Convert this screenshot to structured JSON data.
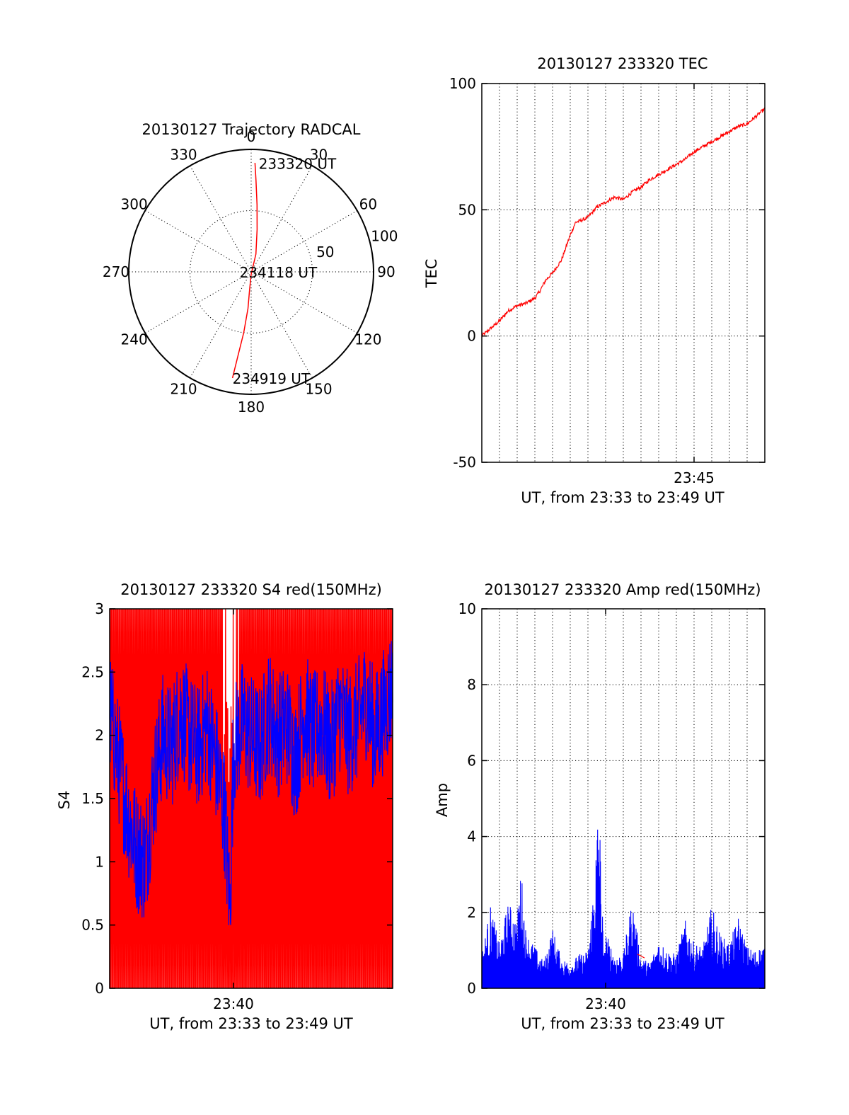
{
  "colors": {
    "red": "#ff0000",
    "blue": "#0000ff",
    "axis": "#000000",
    "background": "#ffffff"
  },
  "chart_data": [
    {
      "id": "trajectory",
      "type": "polar",
      "title": "20130127 Trajectory RADCAL",
      "angle_labels": [
        "0",
        "30",
        "60",
        "90",
        "120",
        "150",
        "180",
        "210",
        "240",
        "270",
        "300",
        "330"
      ],
      "angle_values": [
        0,
        30,
        60,
        90,
        120,
        150,
        180,
        210,
        240,
        270,
        300,
        330
      ],
      "radial_labels": [
        "50",
        "100"
      ],
      "radial_values": [
        50,
        100
      ],
      "rlim": [
        0,
        100
      ],
      "grid": true,
      "series": [
        {
          "color": "#ff0000",
          "points": [
            {
              "az": 2,
              "zen": 89
            },
            {
              "az": 3,
              "zen": 75
            },
            {
              "az": 5,
              "zen": 55
            },
            {
              "az": 8,
              "zen": 35
            },
            {
              "az": 15,
              "zen": 15
            },
            {
              "az": 180,
              "zen": 2
            },
            {
              "az": 185,
              "zen": 15
            },
            {
              "az": 185,
              "zen": 30
            },
            {
              "az": 187,
              "zen": 50
            },
            {
              "az": 189,
              "zen": 70
            },
            {
              "az": 190,
              "zen": 88
            }
          ]
        }
      ],
      "annotations": [
        {
          "text": "233320 UT",
          "az": 4,
          "zen": 89
        },
        {
          "text": "234118 UT",
          "az": 90,
          "zen": 5
        },
        {
          "text": "234919 UT",
          "az": 190,
          "zen": 88
        }
      ]
    },
    {
      "id": "tec",
      "type": "line",
      "title": "20130127 233320 TEC",
      "ylabel": "TEC",
      "xlabel": "UT, from 23:33 to 23:49 UT",
      "xlim": [
        0,
        16
      ],
      "ylim": [
        -50,
        100
      ],
      "yticks": [
        -50,
        0,
        50,
        100
      ],
      "ytick_labels": [
        "-50",
        "0",
        "50",
        "100"
      ],
      "xtick_labels": [
        {
          "text": "23:45",
          "x": 12
        }
      ],
      "xgrid": [
        1,
        2,
        3,
        4,
        5,
        6,
        7,
        8,
        9,
        10,
        11,
        12,
        13,
        14,
        15
      ],
      "grid": true,
      "series": [
        {
          "color": "#ff0000",
          "x": [
            0,
            0.5,
            1,
            1.5,
            2,
            2.5,
            3,
            3.3,
            3.6,
            4,
            4.5,
            5,
            5.3,
            5.7,
            6,
            6.5,
            7,
            7.5,
            8,
            8.5,
            9,
            9.5,
            10,
            10.5,
            11,
            11.5,
            12,
            12.5,
            13,
            13.5,
            14,
            14.5,
            15,
            15.5,
            16
          ],
          "y": [
            0,
            3,
            6,
            10,
            12,
            13,
            15,
            18,
            22,
            25,
            30,
            40,
            45,
            46,
            47,
            51,
            53,
            55,
            54,
            57,
            59,
            62,
            64,
            66,
            68,
            70,
            73,
            75,
            77,
            79,
            81,
            83,
            84,
            87,
            90
          ]
        }
      ]
    },
    {
      "id": "s4",
      "type": "line",
      "title": "20130127 233320 S4 red(150MHz)",
      "ylabel": "S4",
      "xlabel": "UT, from 23:33 to 23:49 UT",
      "xlim": [
        0,
        16
      ],
      "ylim": [
        0,
        3
      ],
      "yticks": [
        0,
        0.5,
        1,
        1.5,
        2,
        2.5,
        3
      ],
      "ytick_labels": [
        "0",
        "0.5",
        "1",
        "1.5",
        "2",
        "2.5",
        "3"
      ],
      "xtick_labels": [
        {
          "text": "23:40",
          "x": 7
        }
      ],
      "grid": false,
      "series": [
        {
          "color": "#ff0000",
          "x": [
            0,
            16
          ],
          "y": [
            0,
            3
          ]
        },
        {
          "color": "#0000ff",
          "x": [
            0,
            0.5,
            1,
            1.5,
            2,
            2.5,
            3,
            3.5,
            4,
            4.5,
            5,
            5.5,
            6,
            6.5,
            6.8,
            7,
            7.5,
            8,
            8.5,
            9,
            9.5,
            10,
            10.5,
            11,
            11.5,
            12,
            12.5,
            13,
            13.5,
            14,
            14.5,
            15,
            15.5,
            16
          ],
          "y": [
            2.2,
            1.8,
            1.4,
            1.1,
            1.0,
            1.6,
            2.0,
            1.9,
            2.2,
            2.0,
            1.9,
            2.1,
            1.8,
            1.4,
            0.6,
            1.9,
            2.1,
            2.0,
            1.9,
            2.2,
            2.0,
            2.1,
            1.8,
            2.2,
            2.0,
            2.1,
            1.9,
            2.2,
            2.0,
            2.1,
            2.3,
            2.0,
            2.2,
            2.4
          ]
        }
      ]
    },
    {
      "id": "amp",
      "type": "line",
      "title": "20130127 233320 Amp red(150MHz)",
      "ylabel": "Amp",
      "xlabel": "UT, from 23:33 to 23:49 UT",
      "xlim": [
        0,
        16
      ],
      "ylim": [
        0,
        10
      ],
      "yticks": [
        0,
        2,
        4,
        6,
        8,
        10
      ],
      "ytick_labels": [
        "0",
        "2",
        "4",
        "6",
        "8",
        "10"
      ],
      "xtick_labels": [
        {
          "text": "23:40",
          "x": 7
        }
      ],
      "xgrid": [
        1,
        2,
        3,
        4,
        5,
        6,
        7,
        8,
        9,
        10,
        11,
        12,
        13,
        14,
        15
      ],
      "grid": true,
      "series": [
        {
          "color": "#0000ff",
          "x": [
            0,
            0.5,
            1,
            1.5,
            2,
            2.2,
            2.5,
            3,
            3.5,
            4,
            4.5,
            5,
            5.5,
            6,
            6.4,
            6.6,
            6.7,
            6.9,
            7,
            7.5,
            8,
            8.5,
            9,
            9.5,
            10,
            10.5,
            11,
            11.5,
            12,
            12.5,
            13,
            13.5,
            14,
            14.5,
            15,
            15.5,
            16
          ],
          "y": [
            0.9,
            2.2,
            1.2,
            2.3,
            1.8,
            3.3,
            1.5,
            1.1,
            0.7,
            1.6,
            0.8,
            0.7,
            0.9,
            1.0,
            3.2,
            5.2,
            4.0,
            0.8,
            1.5,
            0.9,
            0.9,
            2.4,
            0.8,
            0.7,
            1.3,
            1.0,
            0.9,
            1.8,
            1.2,
            1.1,
            2.2,
            1.4,
            1.2,
            1.9,
            1.1,
            1.0,
            1.2
          ]
        },
        {
          "color": "#ff0000",
          "x": [
            8.8,
            9.2
          ],
          "y": [
            0.9,
            0.8
          ]
        }
      ]
    }
  ]
}
